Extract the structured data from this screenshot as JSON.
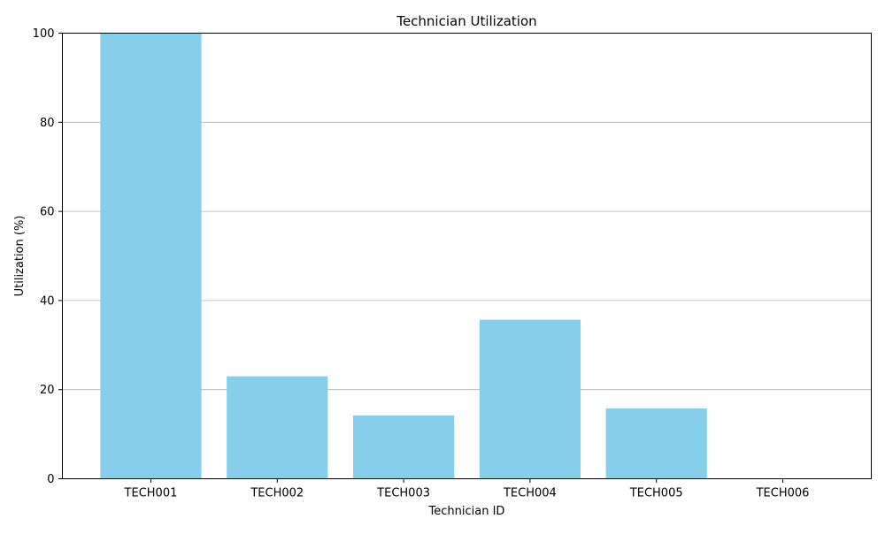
{
  "chart_data": {
    "type": "bar",
    "title": "Technician Utilization",
    "xlabel": "Technician ID",
    "ylabel": "Utilization (%)",
    "categories": [
      "TECH001",
      "TECH002",
      "TECH003",
      "TECH004",
      "TECH005",
      "TECH006"
    ],
    "values": [
      100,
      23,
      14.2,
      35.7,
      15.8,
      0
    ],
    "ylim": [
      0,
      100
    ],
    "yticks": [
      0,
      20,
      40,
      60,
      80,
      100
    ],
    "grid": "y-axis only",
    "legend": "none",
    "colors": {
      "bar": "#87ceeb",
      "grid": "#b0b0b0",
      "axis": "#000000"
    }
  }
}
